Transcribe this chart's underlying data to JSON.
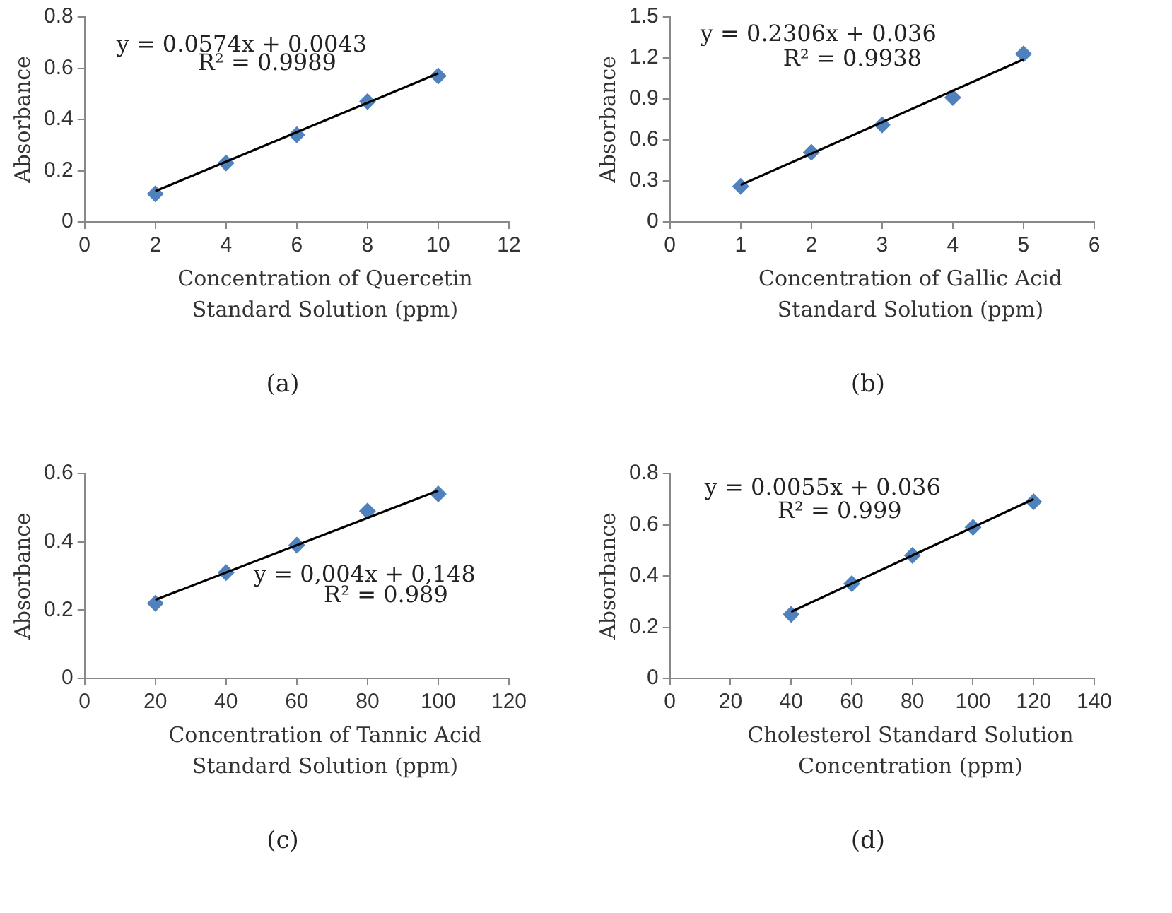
{
  "chart_data": [
    {
      "type": "scatter",
      "xlabel": "Concentration of Quercetin Standard Solution (ppm)",
      "ylabel": "Absorbance",
      "xlim": [
        0,
        12
      ],
      "xticks": [
        0,
        2,
        4,
        6,
        8,
        10,
        12
      ],
      "ylim": [
        0,
        0.8
      ],
      "yticks": [
        0,
        0.2,
        0.4,
        0.6,
        0.8
      ],
      "grid": false,
      "legend": false,
      "marker": "diamond",
      "series": [
        {
          "color": "#4f81bd",
          "x": [
            2,
            4,
            6,
            8,
            10
          ],
          "values": [
            0.11,
            0.23,
            0.34,
            0.47,
            0.57
          ]
        },
        {
          "type": "line",
          "color": "#000000",
          "marker": "none",
          "x": [
            2,
            10
          ],
          "values": [
            0.12,
            0.58
          ]
        }
      ],
      "annotations": [
        "y = 0.0574x + 0.0043",
        "R² = 0.9989",
        "(a)"
      ]
    },
    {
      "type": "scatter",
      "xlabel": "Concentration of Gallic Acid Standard Solution (ppm)",
      "ylabel": "Absorbance",
      "xlim": [
        0,
        6
      ],
      "xticks": [
        0,
        1,
        2,
        3,
        4,
        5,
        6
      ],
      "ylim": [
        0,
        1.5
      ],
      "yticks": [
        0,
        0.3,
        0.6,
        0.9,
        1.2,
        1.5
      ],
      "grid": false,
      "legend": false,
      "marker": "diamond",
      "series": [
        {
          "color": "#4f81bd",
          "x": [
            1,
            2,
            3,
            4,
            5
          ],
          "values": [
            0.26,
            0.51,
            0.71,
            0.91,
            1.23
          ]
        },
        {
          "type": "line",
          "color": "#000000",
          "marker": "none",
          "x": [
            1,
            5
          ],
          "values": [
            0.27,
            1.19
          ]
        }
      ],
      "annotations": [
        "y = 0.2306x + 0.036",
        "R² = 0.9938",
        "(b)"
      ]
    },
    {
      "type": "scatter",
      "xlabel": "Concentration of Tannic Acid Standard Solution (ppm)",
      "ylabel": "Absorbance",
      "xlim": [
        0,
        120
      ],
      "xticks": [
        0,
        20,
        40,
        60,
        80,
        100,
        120
      ],
      "ylim": [
        0,
        0.6
      ],
      "yticks": [
        0,
        0.2,
        0.4,
        0.6
      ],
      "grid": false,
      "legend": false,
      "marker": "diamond",
      "series": [
        {
          "color": "#4f81bd",
          "x": [
            20,
            40,
            60,
            80,
            100
          ],
          "values": [
            0.22,
            0.31,
            0.39,
            0.49,
            0.54
          ]
        },
        {
          "type": "line",
          "color": "#000000",
          "marker": "none",
          "x": [
            20,
            100
          ],
          "values": [
            0.23,
            0.55
          ]
        }
      ],
      "annotations": [
        "y = 0,004x + 0,148",
        "R² = 0.989",
        "(c)"
      ]
    },
    {
      "type": "scatter",
      "xlabel": "Cholesterol Standard Solution Concentration (ppm)",
      "ylabel": "Absorbance",
      "xlim": [
        0,
        140
      ],
      "xticks": [
        0,
        20,
        40,
        60,
        80,
        100,
        120,
        140
      ],
      "ylim": [
        0,
        0.8
      ],
      "yticks": [
        0,
        0.2,
        0.4,
        0.6,
        0.8
      ],
      "grid": false,
      "legend": false,
      "marker": "diamond",
      "series": [
        {
          "color": "#4f81bd",
          "x": [
            40,
            60,
            80,
            100,
            120
          ],
          "values": [
            0.25,
            0.37,
            0.48,
            0.59,
            0.69
          ]
        },
        {
          "type": "line",
          "color": "#000000",
          "marker": "none",
          "x": [
            40,
            120
          ],
          "values": [
            0.26,
            0.7
          ]
        }
      ],
      "annotations": [
        "y = 0.0055x + 0.036",
        "R² = 0.999",
        "(d)"
      ]
    }
  ]
}
